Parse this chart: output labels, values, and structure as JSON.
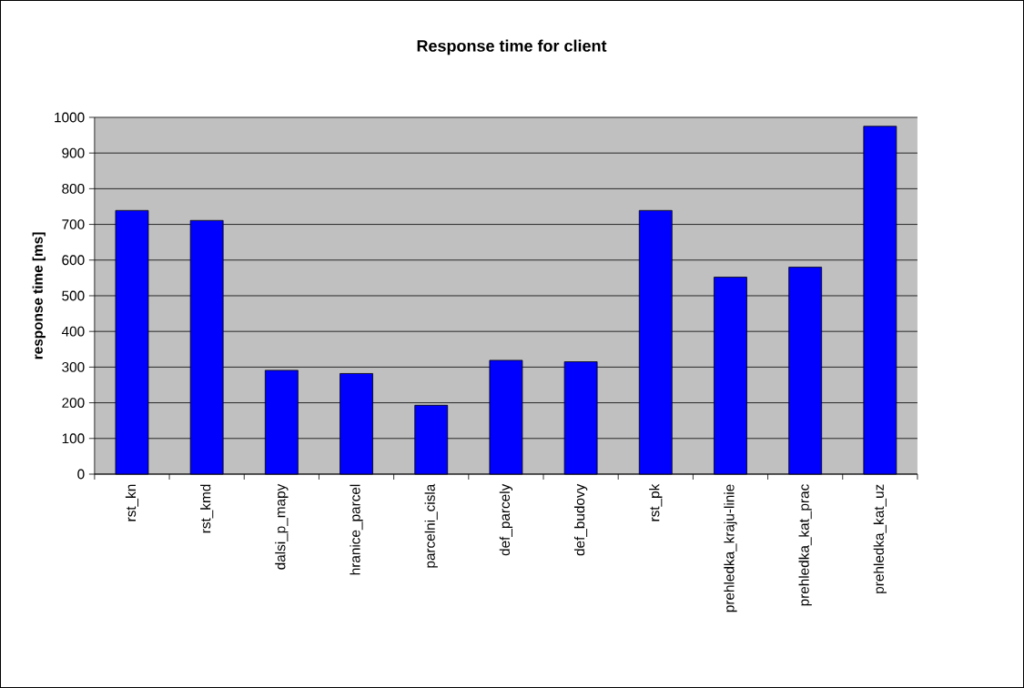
{
  "chart_data": {
    "type": "bar",
    "title": "Response time for client",
    "ylabel": "response time [ms]",
    "categories": [
      "rst_kn",
      "rst_kmd",
      "dalsi_p_mapy",
      "hranice_parcel",
      "parcelni_cisla",
      "def_parcely",
      "def_budovy",
      "rst_pk",
      "prehledka_kraju-linie",
      "prehledka_kat_prac",
      "prehledka_kat_uz"
    ],
    "values": [
      739,
      711,
      291,
      282,
      193,
      319,
      315,
      739,
      552,
      580,
      975
    ],
    "color": "#0000ff",
    "ylim": [
      0,
      1000
    ],
    "yticks": [
      0,
      100,
      200,
      300,
      400,
      500,
      600,
      700,
      800,
      900,
      1000
    ],
    "grid": "y"
  }
}
